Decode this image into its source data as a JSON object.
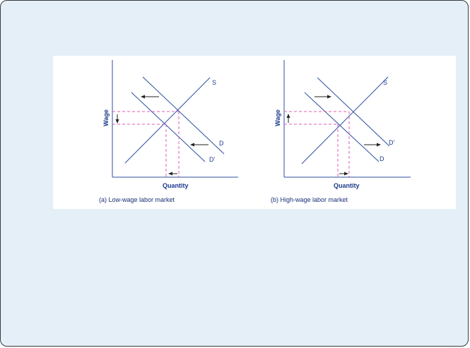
{
  "colors": {
    "slide_background": "#e4eff7",
    "axis": "#2d4f9f",
    "curves": "#2d4f9f",
    "guides": "#e05cb8",
    "arrows": "#222222",
    "text": "#1c3a8c"
  },
  "panels": [
    {
      "caption": "(a) Low-wage labor market",
      "y_axis_label": "Wage",
      "x_axis_label": "Quantity",
      "supply_label": "S",
      "demand_label": "D",
      "new_demand_label": "D'",
      "demand_shift": "left",
      "wage_change": "decrease",
      "quantity_change": "decrease"
    },
    {
      "caption": "(b) High-wage labor market",
      "y_axis_label": "Wage",
      "x_axis_label": "Quantity",
      "supply_label": "S",
      "demand_label": "D",
      "new_demand_label": "D'",
      "demand_shift": "right",
      "wage_change": "increase",
      "quantity_change": "increase"
    }
  ]
}
